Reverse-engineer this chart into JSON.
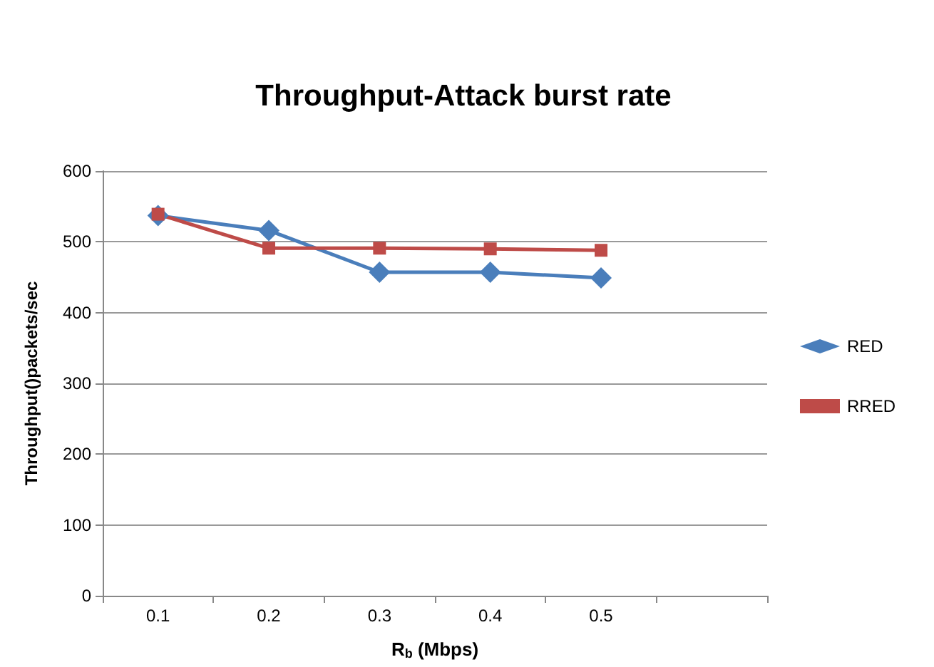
{
  "chart_data": {
    "type": "line",
    "title": "Throughput-Attack burst rate",
    "xlabel": "R$_{b}$ (Mbps)",
    "ylabel": "Throughput()packets/sec",
    "categories": [
      "0.1",
      "0.2",
      "0.3",
      "0.4",
      "0.5",
      null
    ],
    "series": [
      {
        "name": "RED",
        "color": "#4a7ebb",
        "marker": "diamond",
        "values": [
          537,
          516,
          457,
          457,
          449,
          null
        ]
      },
      {
        "name": "RRED",
        "color": "#be4b48",
        "marker": "square",
        "values": [
          539,
          491,
          491,
          490,
          488,
          null
        ]
      }
    ],
    "ylim": [
      0,
      600
    ],
    "yticks": [
      0,
      100,
      200,
      300,
      400,
      500,
      600
    ],
    "grid": "y",
    "legend": "right"
  }
}
